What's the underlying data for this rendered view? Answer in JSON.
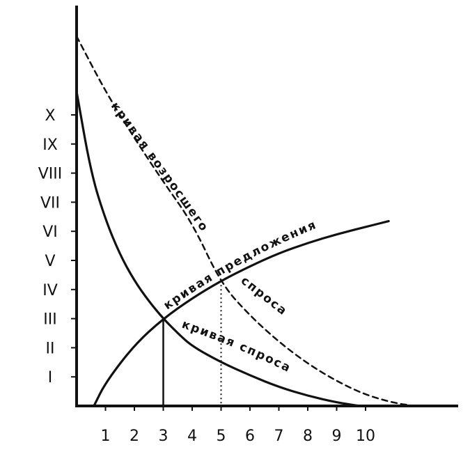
{
  "chart_data": {
    "type": "line",
    "title": "",
    "xlabel": "",
    "ylabel": "",
    "x_ticks": [
      "1",
      "2",
      "3",
      "4",
      "5",
      "6",
      "7",
      "8",
      "9",
      "10"
    ],
    "y_ticks": [
      "I",
      "II",
      "III",
      "IV",
      "V",
      "VI",
      "VII",
      "VIII",
      "IX",
      "X"
    ],
    "xlim": [
      0,
      12.5
    ],
    "ylim": [
      0,
      13.5
    ],
    "grid": false,
    "series": [
      {
        "name": "кривая спроса",
        "style": "solid",
        "points": [
          [
            0,
            10.8
          ],
          [
            0.5,
            8.0
          ],
          [
            1,
            6.4
          ],
          [
            1.5,
            5.2
          ],
          [
            2,
            4.3
          ],
          [
            2.5,
            3.6
          ],
          [
            3,
            3.0
          ],
          [
            3.5,
            2.5
          ],
          [
            4,
            2.05
          ],
          [
            5,
            1.5
          ],
          [
            6,
            1.05
          ],
          [
            7,
            0.65
          ],
          [
            8,
            0.35
          ],
          [
            9,
            0.12
          ],
          [
            9.8,
            0.0
          ]
        ]
      },
      {
        "name": "кривая возросшего спроса",
        "style": "dashed",
        "points": [
          [
            0,
            12.7
          ],
          [
            1,
            10.8
          ],
          [
            2,
            9.2
          ],
          [
            3,
            7.7
          ],
          [
            4,
            6.3
          ],
          [
            5,
            4.2
          ],
          [
            6,
            3.1
          ],
          [
            7,
            2.2
          ],
          [
            8,
            1.45
          ],
          [
            9,
            0.85
          ],
          [
            10,
            0.38
          ],
          [
            11,
            0.1
          ],
          [
            11.7,
            0.0
          ]
        ]
      },
      {
        "name": "кривая предложения",
        "style": "solid",
        "points": [
          [
            0.6,
            0.0
          ],
          [
            1,
            0.8
          ],
          [
            2,
            2.1
          ],
          [
            3,
            3.0
          ],
          [
            4,
            3.7
          ],
          [
            5,
            4.3
          ],
          [
            6,
            4.8
          ],
          [
            7,
            5.25
          ],
          [
            8,
            5.6
          ],
          [
            9,
            5.9
          ],
          [
            10,
            6.15
          ],
          [
            10.8,
            6.35
          ]
        ]
      }
    ],
    "annotations": {
      "equilibrium": {
        "x": 3,
        "y": 3
      },
      "shifted_equilibrium": {
        "x": 5,
        "y": 4.3
      }
    },
    "curve_labels": {
      "raised_demand": "кривая возросшего",
      "raised_demand_2": "спроса",
      "supply": "кривая предложения",
      "demand": "кривая спроса"
    }
  }
}
